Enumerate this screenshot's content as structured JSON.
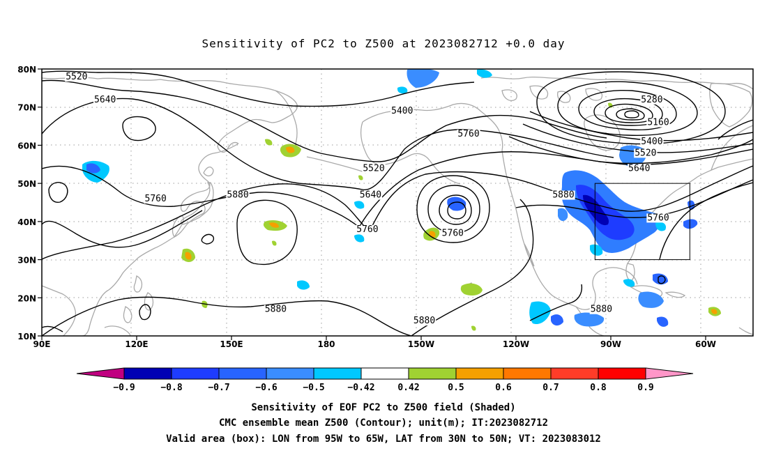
{
  "title": "Sensitivity of PC2 to Z500 at 2023082712 +0.0 day",
  "lat_labels": [
    "80N",
    "70N",
    "60N",
    "50N",
    "40N",
    "30N",
    "20N",
    "10N"
  ],
  "lon_labels": [
    "90E",
    "120E",
    "150E",
    "180",
    "150W",
    "120W",
    "90W",
    "60W"
  ],
  "contour_labels": [
    {
      "text": "5520",
      "lon": 101,
      "lat": 78
    },
    {
      "text": "5640",
      "lon": 110,
      "lat": 72
    },
    {
      "text": "5400",
      "lon": 204,
      "lat": 69
    },
    {
      "text": "5280",
      "lon": 283,
      "lat": 72
    },
    {
      "text": "5160",
      "lon": 285,
      "lat": 66
    },
    {
      "text": "5400",
      "lon": 283,
      "lat": 61
    },
    {
      "text": "5520",
      "lon": 281,
      "lat": 58
    },
    {
      "text": "5640",
      "lon": 279,
      "lat": 54
    },
    {
      "text": "5760",
      "lon": 225,
      "lat": 63
    },
    {
      "text": "5520",
      "lon": 195,
      "lat": 54
    },
    {
      "text": "5640",
      "lon": 194,
      "lat": 47
    },
    {
      "text": "5760",
      "lon": 193,
      "lat": 38
    },
    {
      "text": "5760",
      "lon": 126,
      "lat": 46
    },
    {
      "text": "5880",
      "lon": 152,
      "lat": 47
    },
    {
      "text": "5760",
      "lon": 220,
      "lat": 37
    },
    {
      "text": "5880",
      "lon": 255,
      "lat": 47
    },
    {
      "text": "5760",
      "lon": 285,
      "lat": 41
    },
    {
      "text": "5880",
      "lon": 164,
      "lat": 17
    },
    {
      "text": "5880",
      "lon": 211,
      "lat": 14
    },
    {
      "text": "5880",
      "lon": 267,
      "lat": 17
    }
  ],
  "valid_box": {
    "lon_min": -95,
    "lon_max": -65,
    "lat_min": 30,
    "lat_max": 50
  },
  "colorbar": {
    "labels": [
      "-0.9",
      "-0.8",
      "-0.7",
      "-0.6",
      "-0.5",
      "-0.42",
      "0.42",
      "0.5",
      "0.6",
      "0.7",
      "0.8",
      "0.9"
    ],
    "colors": [
      "#0000b4",
      "#1e3cff",
      "#2864ff",
      "#3a8dff",
      "#00c8ff",
      "#ffffff",
      "#a0d232",
      "#f5a000",
      "#ff7800",
      "#ff3c28",
      "#ff0000"
    ],
    "low_extension_color": "#c00080",
    "high_extension_color": "#ff96c8"
  },
  "caption": [
    "Sensitivity of EOF PC2 to Z500 field (Shaded)",
    "CMC ensemble mean Z500 (Contour); unit(m); IT:2023082712",
    "Valid area (box): LON from 95W to 65W, LAT from 30N to 50N; VT: 2023083012"
  ]
}
